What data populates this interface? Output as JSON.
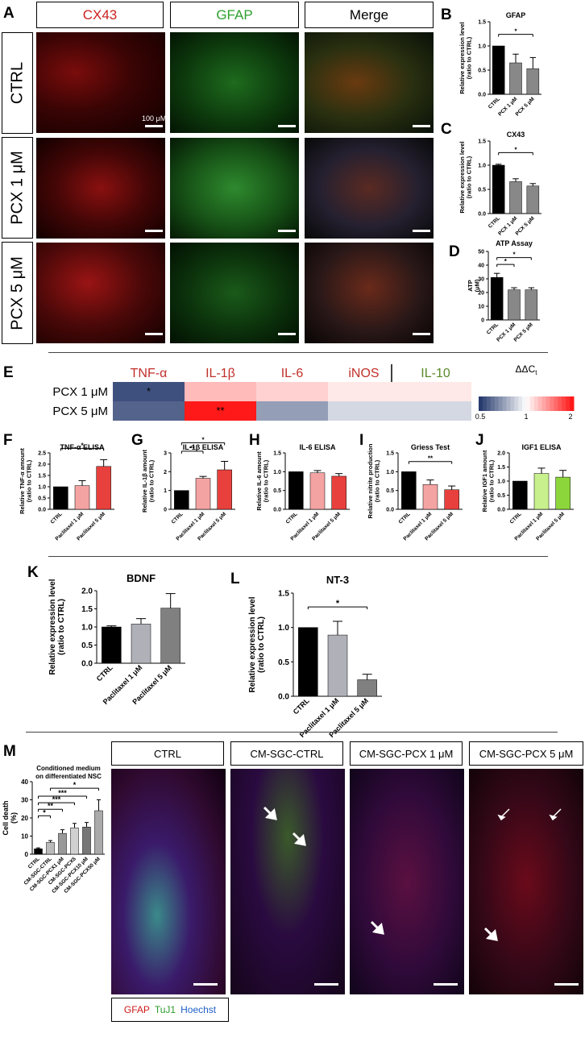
{
  "panel_letters": {
    "A": "A",
    "B": "B",
    "C": "C",
    "D": "D",
    "E": "E",
    "F": "F",
    "G": "G",
    "H": "H",
    "I": "I",
    "J": "J",
    "K": "K",
    "L": "L",
    "M": "M"
  },
  "panel_a": {
    "columns": [
      "CX43",
      "GFAP",
      "Merge"
    ],
    "rows": [
      "CTRL",
      "PCX 1 μM",
      "PCX 5 μM"
    ],
    "scale_label": "100 μM",
    "colors": {
      "cx43": "#cc1f1f",
      "gfap": "#2fa02f"
    }
  },
  "heatmap": {
    "columns": [
      "TNF-α",
      "IL-1β",
      "IL-6",
      "iNOS",
      "IL-10"
    ],
    "column_colors": [
      "#c0302a",
      "#c0302a",
      "#c0302a",
      "#c0302a",
      "#5a8a2a"
    ],
    "rows": [
      "PCX 1 μM",
      "PCX 5 μM"
    ],
    "legend_title": "ΔΔC",
    "legend_title_sub": "t",
    "legend_ticks": [
      "0.5",
      "1",
      "2"
    ]
  },
  "panel_m": {
    "images": [
      "CTRL",
      "CM-SGC-CTRL",
      "CM-SGC-PCX 1 μM",
      "CM-SGC-PCX 5 μM"
    ],
    "stain_legend": [
      {
        "label": "GFAP",
        "color": "#d01818"
      },
      {
        "label": "TuJ1",
        "color": "#2a9a2a"
      },
      {
        "label": "Hoechst",
        "color": "#2060c8"
      }
    ]
  },
  "chart_data": [
    {
      "id": "B",
      "type": "bar",
      "title": "GFAP",
      "ylabel": "Relative expression level (ratio to CTRL)",
      "categories": [
        "CTRL",
        "PCX 1 μM",
        "PCX 5 μM"
      ],
      "values": [
        1.0,
        0.65,
        0.53
      ],
      "errors": [
        0.0,
        0.18,
        0.23
      ],
      "ylim": [
        0,
        1.5
      ],
      "yticks": [
        "0.0",
        "0.5",
        "1.0",
        "1.5"
      ],
      "colors": [
        "#000000",
        "#888888",
        "#888888"
      ],
      "significance": [
        "*"
      ]
    },
    {
      "id": "C",
      "type": "bar",
      "title": "CX43",
      "ylabel": "Relative expression level (ratio to CTRL)",
      "categories": [
        "CTRL",
        "PCX 1 μM",
        "PCX 5 μM"
      ],
      "values": [
        1.0,
        0.66,
        0.57
      ],
      "errors": [
        0.02,
        0.06,
        0.05
      ],
      "ylim": [
        0,
        1.5
      ],
      "yticks": [
        "0.0",
        "0.5",
        "1.0",
        "1.5"
      ],
      "colors": [
        "#000000",
        "#888888",
        "#888888"
      ],
      "significance": [
        "*"
      ]
    },
    {
      "id": "D",
      "type": "bar",
      "title": "ATP Assay",
      "ylabel": "ATP (μM)",
      "categories": [
        "CTRL",
        "PCX 1 μM",
        "PCX 5 μM"
      ],
      "values": [
        31,
        22,
        22
      ],
      "errors": [
        3,
        1.5,
        1.5
      ],
      "ylim": [
        0,
        50
      ],
      "yticks": [
        "0",
        "10",
        "20",
        "30",
        "40",
        "50"
      ],
      "colors": [
        "#000000",
        "#888888",
        "#888888"
      ],
      "significance": [
        "*",
        "*"
      ]
    },
    {
      "id": "E",
      "type": "heatmap",
      "rows": [
        "PCX 1 μM",
        "PCX 5 μM"
      ],
      "columns": [
        "TNF-α",
        "IL-1β",
        "IL-6",
        "iNOS",
        "IL-10"
      ],
      "values": [
        [
          0.55,
          1.3,
          1.2,
          1.1,
          1.1
        ],
        [
          0.6,
          2.0,
          0.75,
          0.9,
          0.9
        ]
      ],
      "annotations": [
        [
          "*",
          "",
          "",
          "",
          ""
        ],
        [
          "",
          "**",
          "",
          "",
          ""
        ]
      ],
      "scale": [
        0.5,
        1,
        2
      ]
    },
    {
      "id": "F",
      "type": "bar",
      "title": "TNF-α ELISA",
      "ylabel": "Relative TNF-α amount (ratio to CTRL)",
      "categories": [
        "CTRL",
        "Paclitaxel 1 μM",
        "Paclitaxel 5 μM"
      ],
      "values": [
        1.0,
        1.05,
        1.9
      ],
      "errors": [
        0.0,
        0.22,
        0.3
      ],
      "ylim": [
        0,
        2.5
      ],
      "yticks": [
        "0.0",
        "0.5",
        "1.0",
        "1.5",
        "2.0",
        "2.5"
      ],
      "colors": [
        "#000000",
        "#f4a3a3",
        "#e8413d"
      ],
      "significance": [
        "*"
      ]
    },
    {
      "id": "G",
      "type": "bar",
      "title": "IL-1β ELISA",
      "ylabel": "Relative IL-1β amount (ratio to CTRL)",
      "categories": [
        "CTRL",
        "Paclitaxel 1 μM",
        "Paclitaxel 5 μM"
      ],
      "values": [
        1.0,
        1.65,
        2.1
      ],
      "errors": [
        0.0,
        0.1,
        0.45
      ],
      "ylim": [
        0,
        3
      ],
      "yticks": [
        "0",
        "1",
        "2",
        "3"
      ],
      "colors": [
        "#000000",
        "#f4a3a3",
        "#e8413d"
      ],
      "significance": [
        "**",
        "*"
      ]
    },
    {
      "id": "H",
      "type": "bar",
      "title": "IL-6 ELISA",
      "ylabel": "Relative IL-6 amount (ratio to CTRL)",
      "categories": [
        "CTRL",
        "Paclitaxel 1 μM",
        "Paclitaxel 5 μM"
      ],
      "values": [
        1.0,
        0.97,
        0.88
      ],
      "errors": [
        0.0,
        0.06,
        0.07
      ],
      "ylim": [
        0,
        1.5
      ],
      "yticks": [
        "0.0",
        "0.5",
        "1.0",
        "1.5"
      ],
      "colors": [
        "#000000",
        "#f4a3a3",
        "#e8413d"
      ],
      "significance": []
    },
    {
      "id": "I",
      "type": "bar",
      "title": "Griess Test",
      "ylabel": "Relative nitrite production (ratio to CTRL)",
      "categories": [
        "CTRL",
        "Paclitaxel 1 μM",
        "Paclitaxel 5 μM"
      ],
      "values": [
        1.0,
        0.66,
        0.52
      ],
      "errors": [
        0.0,
        0.12,
        0.1
      ],
      "ylim": [
        0,
        1.5
      ],
      "yticks": [
        "0.0",
        "0.5",
        "1.0",
        "1.5"
      ],
      "colors": [
        "#000000",
        "#f4a3a3",
        "#e8413d"
      ],
      "significance": [
        "**"
      ]
    },
    {
      "id": "J",
      "type": "bar",
      "title": "IGF1 ELISA",
      "ylabel": "Relative IGF1 amount (ratio to CTRL)",
      "categories": [
        "CTRL",
        "Paclitaxel 1 μM",
        "Paclitaxel 5 μM"
      ],
      "values": [
        1.0,
        1.27,
        1.14
      ],
      "errors": [
        0.0,
        0.19,
        0.24
      ],
      "ylim": [
        0,
        2.0
      ],
      "yticks": [
        "0.0",
        "0.5",
        "1.0",
        "1.5",
        "2.0"
      ],
      "colors": [
        "#000000",
        "#c8f08c",
        "#8cd63c"
      ],
      "significance": []
    },
    {
      "id": "K",
      "type": "bar",
      "title": "BDNF",
      "ylabel": "Relative expression level (ratio to CTRL)",
      "categories": [
        "CTRL",
        "Paclitaxel 1 μM",
        "Paclitaxel 5 μM"
      ],
      "values": [
        1.0,
        1.08,
        1.52
      ],
      "errors": [
        0.03,
        0.15,
        0.4
      ],
      "ylim": [
        0,
        2.0
      ],
      "yticks": [
        "0.0",
        "0.5",
        "1.0",
        "1.5",
        "2.0"
      ],
      "colors": [
        "#000000",
        "#b0b0b8",
        "#808080"
      ],
      "significance": []
    },
    {
      "id": "L",
      "type": "bar",
      "title": "NT-3",
      "ylabel": "Relative expression level (ratio to CTRL)",
      "categories": [
        "CTRL",
        "Paclitaxel 1 μM",
        "Paclitaxel 5 μM"
      ],
      "values": [
        1.0,
        0.89,
        0.24
      ],
      "errors": [
        0.0,
        0.2,
        0.08
      ],
      "ylim": [
        0,
        1.5
      ],
      "yticks": [
        "0.0",
        "0.5",
        "1.0",
        "1.5"
      ],
      "colors": [
        "#000000",
        "#b0b0b8",
        "#808080"
      ],
      "significance": [
        "*"
      ]
    },
    {
      "id": "M",
      "type": "bar",
      "title": "Conditioned medium on differentiated NSC",
      "ylabel": "Cell death (%)",
      "categories": [
        "CTRL",
        "CM-SGC-CTRL",
        "CM-SGC-PCX1 μM",
        "CM-SGC-PCX5",
        "CM-SGC-PCX10 μM",
        "CM-SGC-PCX50 μM"
      ],
      "values": [
        3,
        6.5,
        11.5,
        14.5,
        15,
        24
      ],
      "errors": [
        0.5,
        1,
        2,
        2.5,
        2.5,
        6
      ],
      "ylim": [
        0,
        40
      ],
      "yticks": [
        "0",
        "10",
        "20",
        "30",
        "40"
      ],
      "colors": [
        "#000000",
        "#bbbbbb",
        "#999999",
        "#d0d0d0",
        "#777777",
        "#aaaaaa"
      ],
      "significance": [
        "*",
        "**",
        "***",
        "***",
        "*"
      ]
    }
  ]
}
